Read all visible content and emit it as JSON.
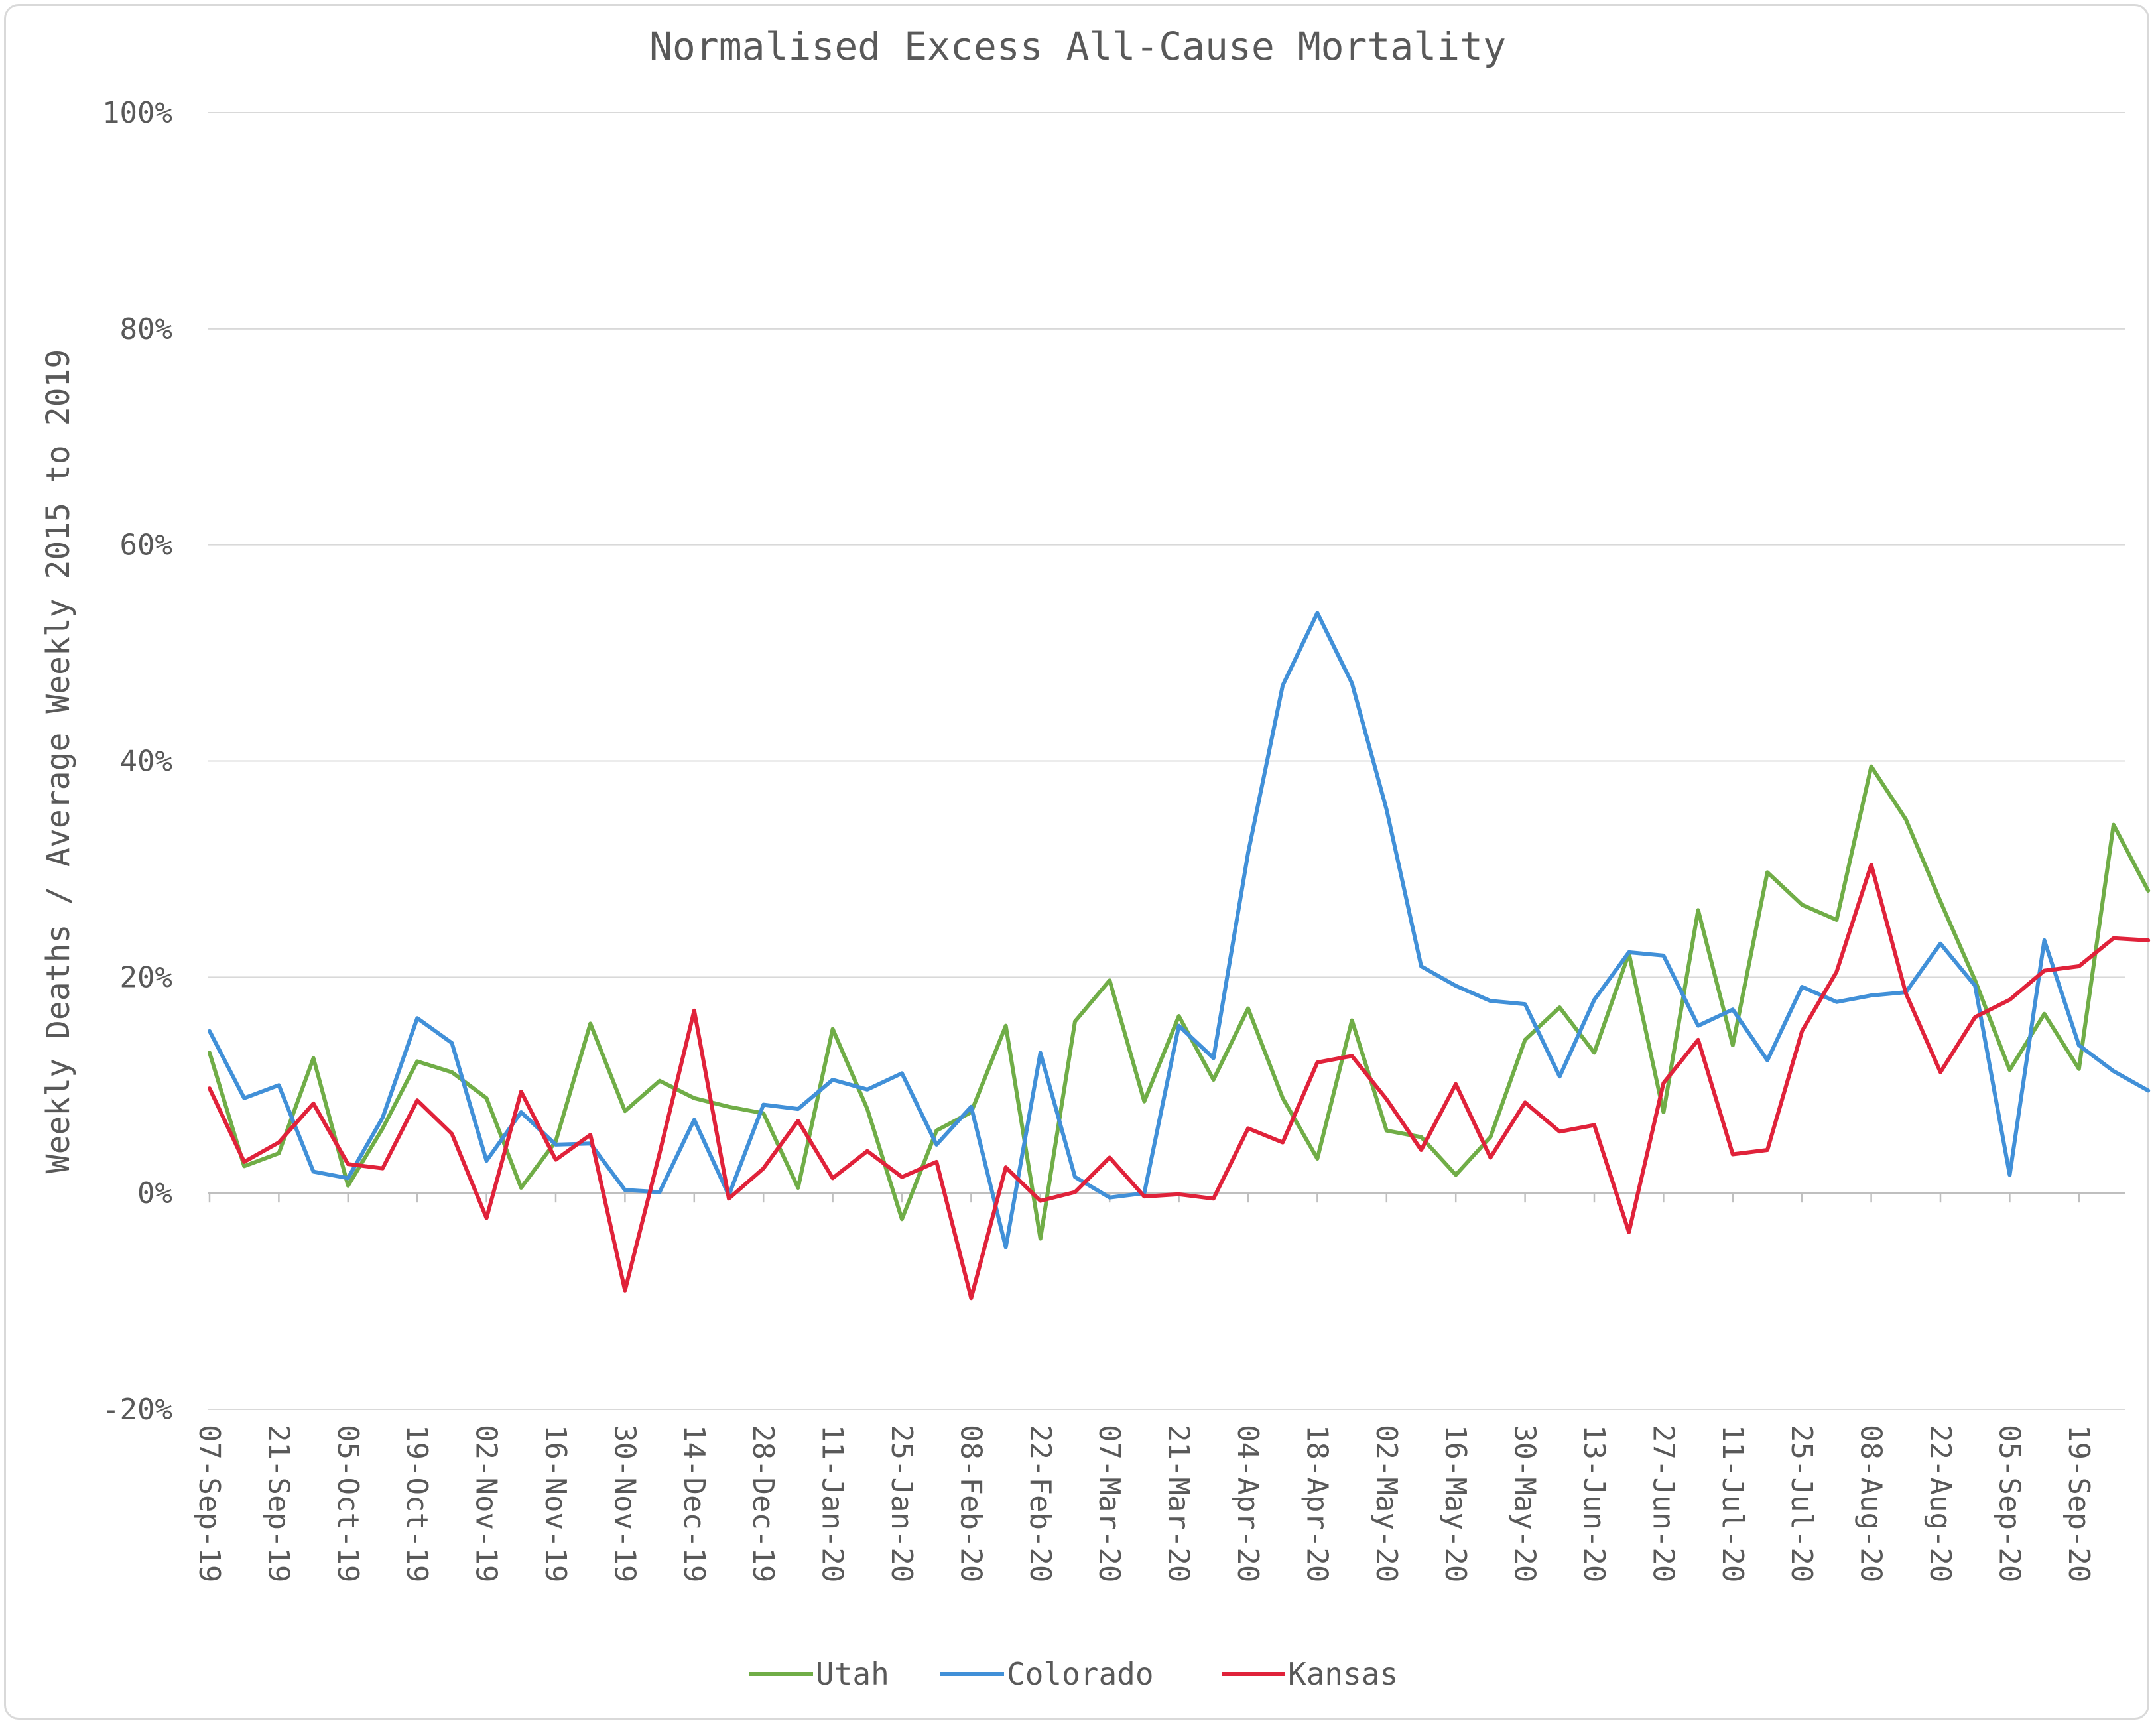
{
  "chart_data": {
    "type": "line",
    "title": "Normalised Excess All-Cause Mortality",
    "ylabel": "Weekly Deaths / Average Weekly 2015 to 2019",
    "xlabel": "",
    "ylim": [
      -20,
      100
    ],
    "y_ticks": [
      {
        "value": -20,
        "label": "-20%"
      },
      {
        "value": 0,
        "label": "0%"
      },
      {
        "value": 20,
        "label": "20%"
      },
      {
        "value": 40,
        "label": "40%"
      },
      {
        "value": 60,
        "label": "60%"
      },
      {
        "value": 80,
        "label": "80%"
      },
      {
        "value": 100,
        "label": "100%"
      }
    ],
    "x_tick_labels": [
      "07-Sep-19",
      "21-Sep-19",
      "05-Oct-19",
      "19-Oct-19",
      "02-Nov-19",
      "16-Nov-19",
      "30-Nov-19",
      "14-Dec-19",
      "28-Dec-19",
      "11-Jan-20",
      "25-Jan-20",
      "08-Feb-20",
      "22-Feb-20",
      "07-Mar-20",
      "21-Mar-20",
      "04-Apr-20",
      "18-Apr-20",
      "02-May-20",
      "16-May-20",
      "30-May-20",
      "13-Jun-20",
      "27-Jun-20",
      "11-Jul-20",
      "25-Jul-20",
      "08-Aug-20",
      "22-Aug-20",
      "05-Sep-20",
      "19-Sep-20"
    ],
    "grid": true,
    "legend_position": "bottom",
    "series": [
      {
        "name": "Utah",
        "color": "#70ad47",
        "values": [
          13,
          2.5,
          3.7,
          12.5,
          0.7,
          6,
          12.2,
          11.2,
          8.8,
          0.5,
          4.8,
          15.7,
          7.6,
          10.4,
          8.8,
          8,
          7.4,
          0.5,
          15.2,
          7.8,
          -2.4,
          5.8,
          7.5,
          15.5,
          -4.2,
          15.9,
          19.7,
          8.5,
          16.4,
          10.5,
          17.1,
          8.8,
          3.2,
          16,
          5.8,
          5.2,
          1.7,
          5.2,
          14.2,
          17.2,
          13,
          22.2,
          7.5,
          26.2,
          13.7,
          29.7,
          26.7,
          25.3,
          39.5,
          34.6,
          27,
          19.7,
          11.4,
          16.6,
          11.5,
          34.1,
          28
        ]
      },
      {
        "name": "Colorado",
        "color": "#4190d8",
        "values": [
          15,
          8.8,
          10,
          2,
          1.4,
          7,
          16.2,
          13.9,
          3,
          7.5,
          4.5,
          4.6,
          0.3,
          0.1,
          6.8,
          -0.2,
          8.2,
          7.8,
          10.5,
          9.6,
          11.1,
          4.5,
          8,
          -5,
          13,
          1.5,
          -0.4,
          0,
          15.5,
          12.5,
          31.5,
          47,
          53.7,
          47.2,
          35.5,
          21,
          19.2,
          17.8,
          17.5,
          10.8,
          17.9,
          22.3,
          22,
          15.5,
          17,
          12.3,
          19.1,
          17.7,
          18.3,
          18.6,
          23.1,
          19.2,
          1.7,
          23.4,
          13.7,
          11.3,
          9.5
        ]
      },
      {
        "name": "Kansas",
        "color": "#e0223a",
        "values": [
          9.7,
          2.9,
          4.7,
          8.3,
          2.7,
          2.3,
          8.6,
          5.5,
          -2.3,
          9.4,
          3.1,
          5.4,
          -9,
          3.7,
          16.9,
          -0.5,
          2.3,
          6.7,
          1.4,
          3.9,
          1.5,
          2.9,
          -9.7,
          2.4,
          -0.7,
          0.1,
          3.3,
          -0.3,
          -0.1,
          -0.5,
          6,
          4.7,
          12.1,
          12.7,
          8.7,
          4,
          10.1,
          3.3,
          8.4,
          5.7,
          6.3,
          -3.6,
          10.2,
          14.2,
          3.6,
          4,
          15,
          20.5,
          30.4,
          18.5,
          11.2,
          16.3,
          17.9,
          20.6,
          21,
          23.6,
          23.4
        ]
      }
    ]
  }
}
